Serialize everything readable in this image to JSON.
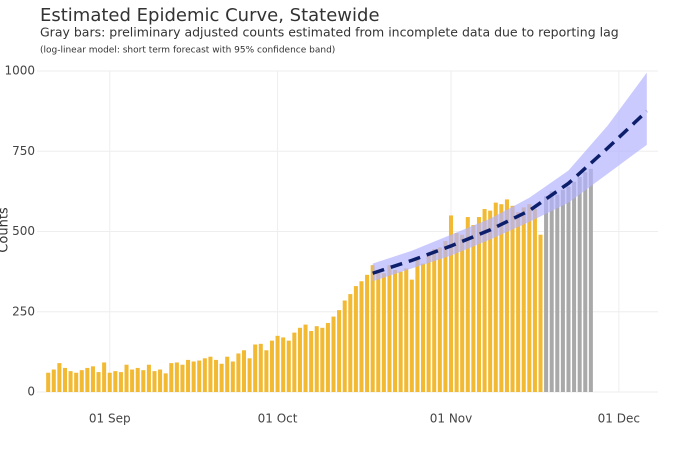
{
  "chart_data": {
    "type": "bar",
    "title": "Estimated Epidemic Curve, Statewide",
    "subtitle": "Gray bars: preliminary adjusted counts estimated from incomplete data due to reporting lag",
    "note": "(log-linear model: short term forecast with 95% confidence band)",
    "y_label": "Counts",
    "xlim": [
      "08-19",
      "12-08"
    ],
    "xticks": [
      {
        "value": "09-01",
        "label": "01 Sep"
      },
      {
        "value": "10-01",
        "label": "01 Oct"
      },
      {
        "value": "11-01",
        "label": "01 Nov"
      },
      {
        "value": "12-01",
        "label": "01 Dec"
      }
    ],
    "ylim": [
      0,
      1000
    ],
    "yticks": [
      0,
      250,
      500,
      750,
      1000
    ],
    "grid": true,
    "series": [
      {
        "type": "bar",
        "color": "#f2b933",
        "x": [
          "08-21",
          "08-22",
          "08-23",
          "08-24",
          "08-25",
          "08-26",
          "08-27",
          "08-28",
          "08-29",
          "08-30",
          "08-31",
          "09-01",
          "09-02",
          "09-03",
          "09-04",
          "09-05",
          "09-06",
          "09-07",
          "09-08",
          "09-09",
          "09-10",
          "09-11",
          "09-12",
          "09-13",
          "09-14",
          "09-15",
          "09-16",
          "09-17",
          "09-18",
          "09-19",
          "09-20",
          "09-21",
          "09-22",
          "09-23",
          "09-24",
          "09-25",
          "09-26",
          "09-27",
          "09-28",
          "09-29",
          "09-30",
          "10-01",
          "10-02",
          "10-03",
          "10-04",
          "10-05",
          "10-06",
          "10-07",
          "10-08",
          "10-09",
          "10-10",
          "10-11",
          "10-12",
          "10-13",
          "10-14",
          "10-15",
          "10-16",
          "10-17",
          "10-18",
          "10-19",
          "10-20",
          "10-21",
          "10-22",
          "10-23",
          "10-24",
          "10-25",
          "10-26",
          "10-27",
          "10-28",
          "10-29",
          "10-30",
          "10-31",
          "11-01",
          "11-02",
          "11-03",
          "11-04",
          "11-05",
          "11-06",
          "11-07",
          "11-08",
          "11-09",
          "11-10",
          "11-11",
          "11-12",
          "11-13",
          "11-14",
          "11-15",
          "11-16",
          "11-17"
        ],
        "values": [
          60,
          70,
          90,
          75,
          65,
          60,
          68,
          75,
          80,
          62,
          92,
          60,
          65,
          62,
          85,
          70,
          75,
          68,
          85,
          65,
          70,
          58,
          90,
          92,
          85,
          100,
          95,
          98,
          105,
          110,
          100,
          88,
          110,
          95,
          120,
          130,
          105,
          148,
          150,
          130,
          160,
          175,
          170,
          160,
          185,
          200,
          210,
          190,
          205,
          200,
          215,
          235,
          255,
          285,
          305,
          330,
          345,
          365,
          395,
          380,
          370,
          395,
          380,
          375,
          385,
          350,
          415,
          400,
          430,
          445,
          450,
          470,
          550,
          495,
          490,
          545,
          520,
          545,
          570,
          565,
          590,
          585,
          600,
          580,
          560,
          575,
          585,
          570,
          490
        ]
      },
      {
        "type": "bar",
        "color": "#a9a9a9",
        "x": [
          "11-18",
          "11-19",
          "11-20",
          "11-21",
          "11-22",
          "11-23",
          "11-24",
          "11-25",
          "11-26"
        ],
        "values": [
          610,
          625,
          615,
          630,
          640,
          655,
          670,
          685,
          695
        ]
      },
      {
        "type": "band",
        "color": "#b3b3ff",
        "x": [
          "10-18",
          "10-25",
          "11-01",
          "11-08",
          "11-15",
          "11-22",
          "11-29",
          "12-06"
        ],
        "lower": [
          345,
          385,
          425,
          475,
          530,
          590,
          680,
          770
        ],
        "upper": [
          400,
          440,
          490,
          540,
          605,
          690,
          830,
          995
        ]
      },
      {
        "type": "line",
        "color": "#0d1f6b",
        "x": [
          "10-18",
          "10-25",
          "11-01",
          "11-08",
          "11-15",
          "11-22",
          "11-29",
          "12-06"
        ],
        "values": [
          370,
          410,
          455,
          505,
          565,
          650,
          760,
          875
        ]
      }
    ]
  }
}
